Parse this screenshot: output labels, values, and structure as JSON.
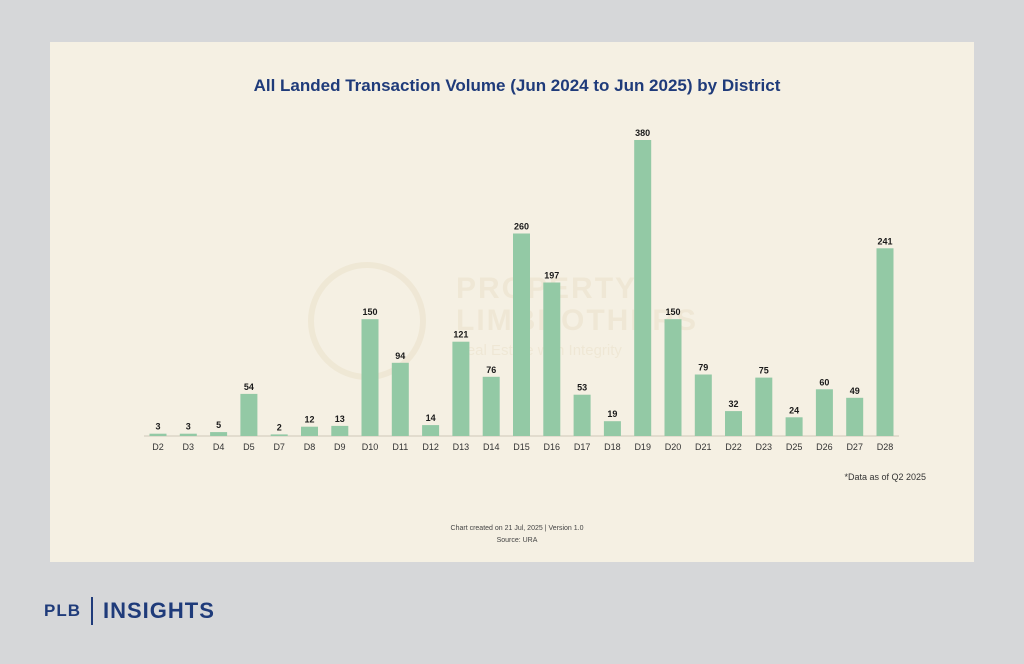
{
  "chart_data": {
    "type": "bar",
    "title": "All Landed Transaction Volume (Jun 2024 to Jun 2025) by District",
    "categories": [
      "D2",
      "D3",
      "D4",
      "D5",
      "D7",
      "D8",
      "D9",
      "D10",
      "D11",
      "D12",
      "D13",
      "D14",
      "D15",
      "D16",
      "D17",
      "D18",
      "D19",
      "D20",
      "D21",
      "D22",
      "D23",
      "D25",
      "D26",
      "D27",
      "D28"
    ],
    "values": [
      3,
      3,
      5,
      54,
      2,
      12,
      13,
      150,
      94,
      14,
      121,
      76,
      260,
      197,
      53,
      19,
      380,
      150,
      79,
      32,
      75,
      24,
      60,
      49,
      241
    ],
    "xlabel": "",
    "ylabel": "",
    "ylim": [
      0,
      380
    ],
    "grid": false,
    "bar_color": "#93c9a5",
    "data_labels": true
  },
  "footnote": "*Data as of Q2 2025",
  "created": "Chart created on 21 Jul, 2025 | Version 1.0",
  "source": "Source: URA",
  "watermark": {
    "line1": "PROPERTY",
    "line2": "LIMBROTHERS",
    "line3": "Real Estate with Integrity"
  },
  "brand": {
    "plb": "PLB",
    "insights": "INSIGHTS"
  },
  "colors": {
    "page_bg": "#d6d7d9",
    "card_bg": "#f5f0e3",
    "title": "#1f3b7a",
    "bar": "#93c9a5"
  }
}
